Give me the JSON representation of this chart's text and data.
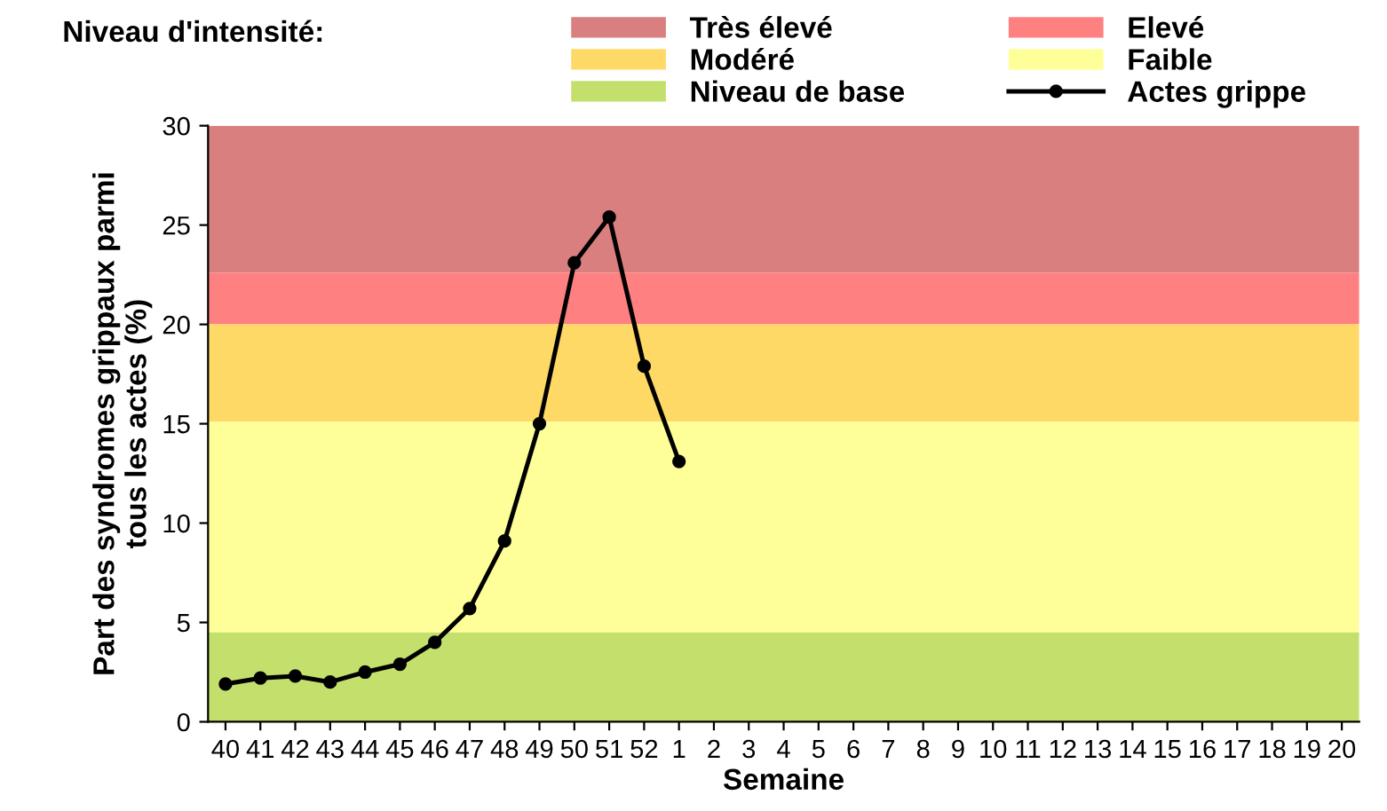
{
  "chart_data": {
    "type": "line",
    "ylabel": "Part des syndromes grippaux parmi\ntous les actes (%)",
    "xlabel": "Semaine",
    "legend_title": "Niveau d'intensité:",
    "categories": [
      "40",
      "41",
      "42",
      "43",
      "44",
      "45",
      "46",
      "47",
      "48",
      "49",
      "50",
      "51",
      "52",
      "1",
      "2",
      "3",
      "4",
      "5",
      "6",
      "7",
      "8",
      "9",
      "10",
      "11",
      "12",
      "13",
      "14",
      "15",
      "16",
      "17",
      "18",
      "19",
      "20"
    ],
    "series": [
      {
        "name": "Actes grippe",
        "color": "#000000",
        "values": [
          1.9,
          2.2,
          2.3,
          2.0,
          2.5,
          2.9,
          4.0,
          5.7,
          9.1,
          15.0,
          23.1,
          25.4,
          17.9,
          13.1,
          null,
          null,
          null,
          null,
          null,
          null,
          null,
          null,
          null,
          null,
          null,
          null,
          null,
          null,
          null,
          null,
          null,
          null,
          null
        ]
      }
    ],
    "bands": [
      {
        "axis": "y",
        "from": 22.6,
        "to": 30,
        "label": "Très élevé",
        "color": "#da7f7f"
      },
      {
        "axis": "y",
        "from": 20,
        "to": 22.6,
        "label": "Elevé",
        "color": "#ff8080"
      },
      {
        "axis": "y",
        "from": 15.1,
        "to": 20,
        "label": "Modéré",
        "color": "#ffd966"
      },
      {
        "axis": "y",
        "from": 4.5,
        "to": 15.1,
        "label": "Faible",
        "color": "#ffff99"
      },
      {
        "axis": "y",
        "from": 0,
        "to": 4.5,
        "label": "Niveau de base",
        "color": "#c4e06c"
      }
    ],
    "ylim": [
      0,
      30
    ],
    "yticks": [
      0,
      5,
      10,
      15,
      20,
      25,
      30
    ],
    "marker": "circle",
    "line_style": "solid",
    "legend": "top",
    "grid": false
  }
}
